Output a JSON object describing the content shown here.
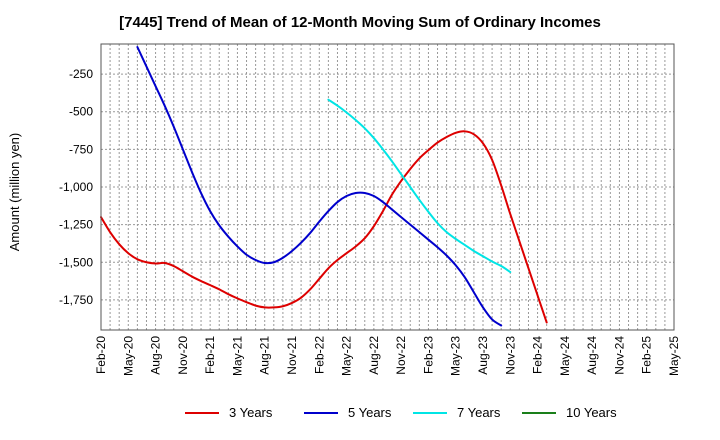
{
  "chart_data": {
    "type": "line",
    "title": "[7445]  Trend of Mean of 12-Month Moving Sum of Ordinary Incomes",
    "xlabel": "",
    "ylabel": "Amount (million yen)",
    "ylim": [
      -1950,
      -50
    ],
    "y_ticks": [
      -250,
      -500,
      -750,
      -1000,
      -1250,
      -1500,
      -1750
    ],
    "y_tick_labels": [
      "-250",
      "-500",
      "-750",
      "-1,000",
      "-1,250",
      "-1,500",
      "-1,750"
    ],
    "x_tick_labels": [
      "Feb-20",
      "May-20",
      "Aug-20",
      "Nov-20",
      "Feb-21",
      "May-21",
      "Aug-21",
      "Nov-21",
      "Feb-22",
      "May-22",
      "Aug-22",
      "Nov-22",
      "Feb-23",
      "May-23",
      "Aug-23",
      "Nov-23",
      "Feb-24",
      "May-24",
      "Aug-24",
      "Nov-24",
      "Feb-25",
      "May-25"
    ],
    "grid": true,
    "legend_position": "bottom",
    "series": [
      {
        "name": "3 Years",
        "color": "#dd0000",
        "points": [
          [
            0,
            -1200
          ],
          [
            1,
            -1300
          ],
          [
            2,
            -1380
          ],
          [
            3,
            -1440
          ],
          [
            4,
            -1480
          ],
          [
            5,
            -1500
          ],
          [
            6,
            -1508
          ],
          [
            7,
            -1505
          ],
          [
            8,
            -1525
          ],
          [
            9,
            -1560
          ],
          [
            10,
            -1595
          ],
          [
            11,
            -1625
          ],
          [
            12,
            -1652
          ],
          [
            13,
            -1680
          ],
          [
            14,
            -1712
          ],
          [
            15,
            -1740
          ],
          [
            16,
            -1765
          ],
          [
            17,
            -1788
          ],
          [
            18,
            -1800
          ],
          [
            19,
            -1800
          ],
          [
            20,
            -1792
          ],
          [
            21,
            -1770
          ],
          [
            22,
            -1735
          ],
          [
            23,
            -1680
          ],
          [
            24,
            -1610
          ],
          [
            25,
            -1540
          ],
          [
            26,
            -1485
          ],
          [
            27,
            -1440
          ],
          [
            28,
            -1395
          ],
          [
            29,
            -1340
          ],
          [
            30,
            -1260
          ],
          [
            31,
            -1160
          ],
          [
            32,
            -1050
          ],
          [
            33,
            -960
          ],
          [
            34,
            -880
          ],
          [
            35,
            -810
          ],
          [
            36,
            -755
          ],
          [
            37,
            -705
          ],
          [
            38,
            -668
          ],
          [
            39,
            -640
          ],
          [
            40,
            -630
          ],
          [
            41,
            -650
          ],
          [
            42,
            -710
          ],
          [
            43,
            -820
          ],
          [
            44,
            -990
          ],
          [
            45,
            -1180
          ],
          [
            46,
            -1360
          ],
          [
            47,
            -1540
          ],
          [
            48,
            -1720
          ],
          [
            49,
            -1900
          ]
        ]
      },
      {
        "name": "5 Years",
        "color": "#0000cc",
        "points": [
          [
            4,
            -70
          ],
          [
            5,
            -200
          ],
          [
            6,
            -330
          ],
          [
            7,
            -460
          ],
          [
            8,
            -600
          ],
          [
            9,
            -750
          ],
          [
            10,
            -900
          ],
          [
            11,
            -1040
          ],
          [
            12,
            -1160
          ],
          [
            13,
            -1255
          ],
          [
            14,
            -1330
          ],
          [
            15,
            -1395
          ],
          [
            16,
            -1450
          ],
          [
            17,
            -1485
          ],
          [
            18,
            -1505
          ],
          [
            19,
            -1500
          ],
          [
            20,
            -1470
          ],
          [
            21,
            -1425
          ],
          [
            22,
            -1370
          ],
          [
            23,
            -1305
          ],
          [
            24,
            -1230
          ],
          [
            25,
            -1160
          ],
          [
            26,
            -1100
          ],
          [
            27,
            -1060
          ],
          [
            28,
            -1040
          ],
          [
            29,
            -1040
          ],
          [
            30,
            -1060
          ],
          [
            31,
            -1100
          ],
          [
            32,
            -1150
          ],
          [
            33,
            -1200
          ],
          [
            34,
            -1250
          ],
          [
            35,
            -1300
          ],
          [
            36,
            -1350
          ],
          [
            37,
            -1400
          ],
          [
            38,
            -1455
          ],
          [
            39,
            -1520
          ],
          [
            40,
            -1600
          ],
          [
            41,
            -1700
          ],
          [
            42,
            -1800
          ],
          [
            43,
            -1880
          ],
          [
            44,
            -1920
          ]
        ]
      },
      {
        "name": "7 Years",
        "color": "#00e5e5",
        "points": [
          [
            25,
            -420
          ],
          [
            26,
            -460
          ],
          [
            27,
            -505
          ],
          [
            28,
            -555
          ],
          [
            29,
            -610
          ],
          [
            30,
            -675
          ],
          [
            31,
            -750
          ],
          [
            32,
            -830
          ],
          [
            33,
            -915
          ],
          [
            34,
            -1000
          ],
          [
            35,
            -1085
          ],
          [
            36,
            -1165
          ],
          [
            37,
            -1240
          ],
          [
            38,
            -1300
          ],
          [
            39,
            -1345
          ],
          [
            40,
            -1385
          ],
          [
            41,
            -1425
          ],
          [
            42,
            -1460
          ],
          [
            43,
            -1495
          ],
          [
            44,
            -1525
          ],
          [
            45,
            -1565
          ]
        ]
      },
      {
        "name": "10 Years",
        "color": "#1a7f1a",
        "points": []
      }
    ]
  }
}
